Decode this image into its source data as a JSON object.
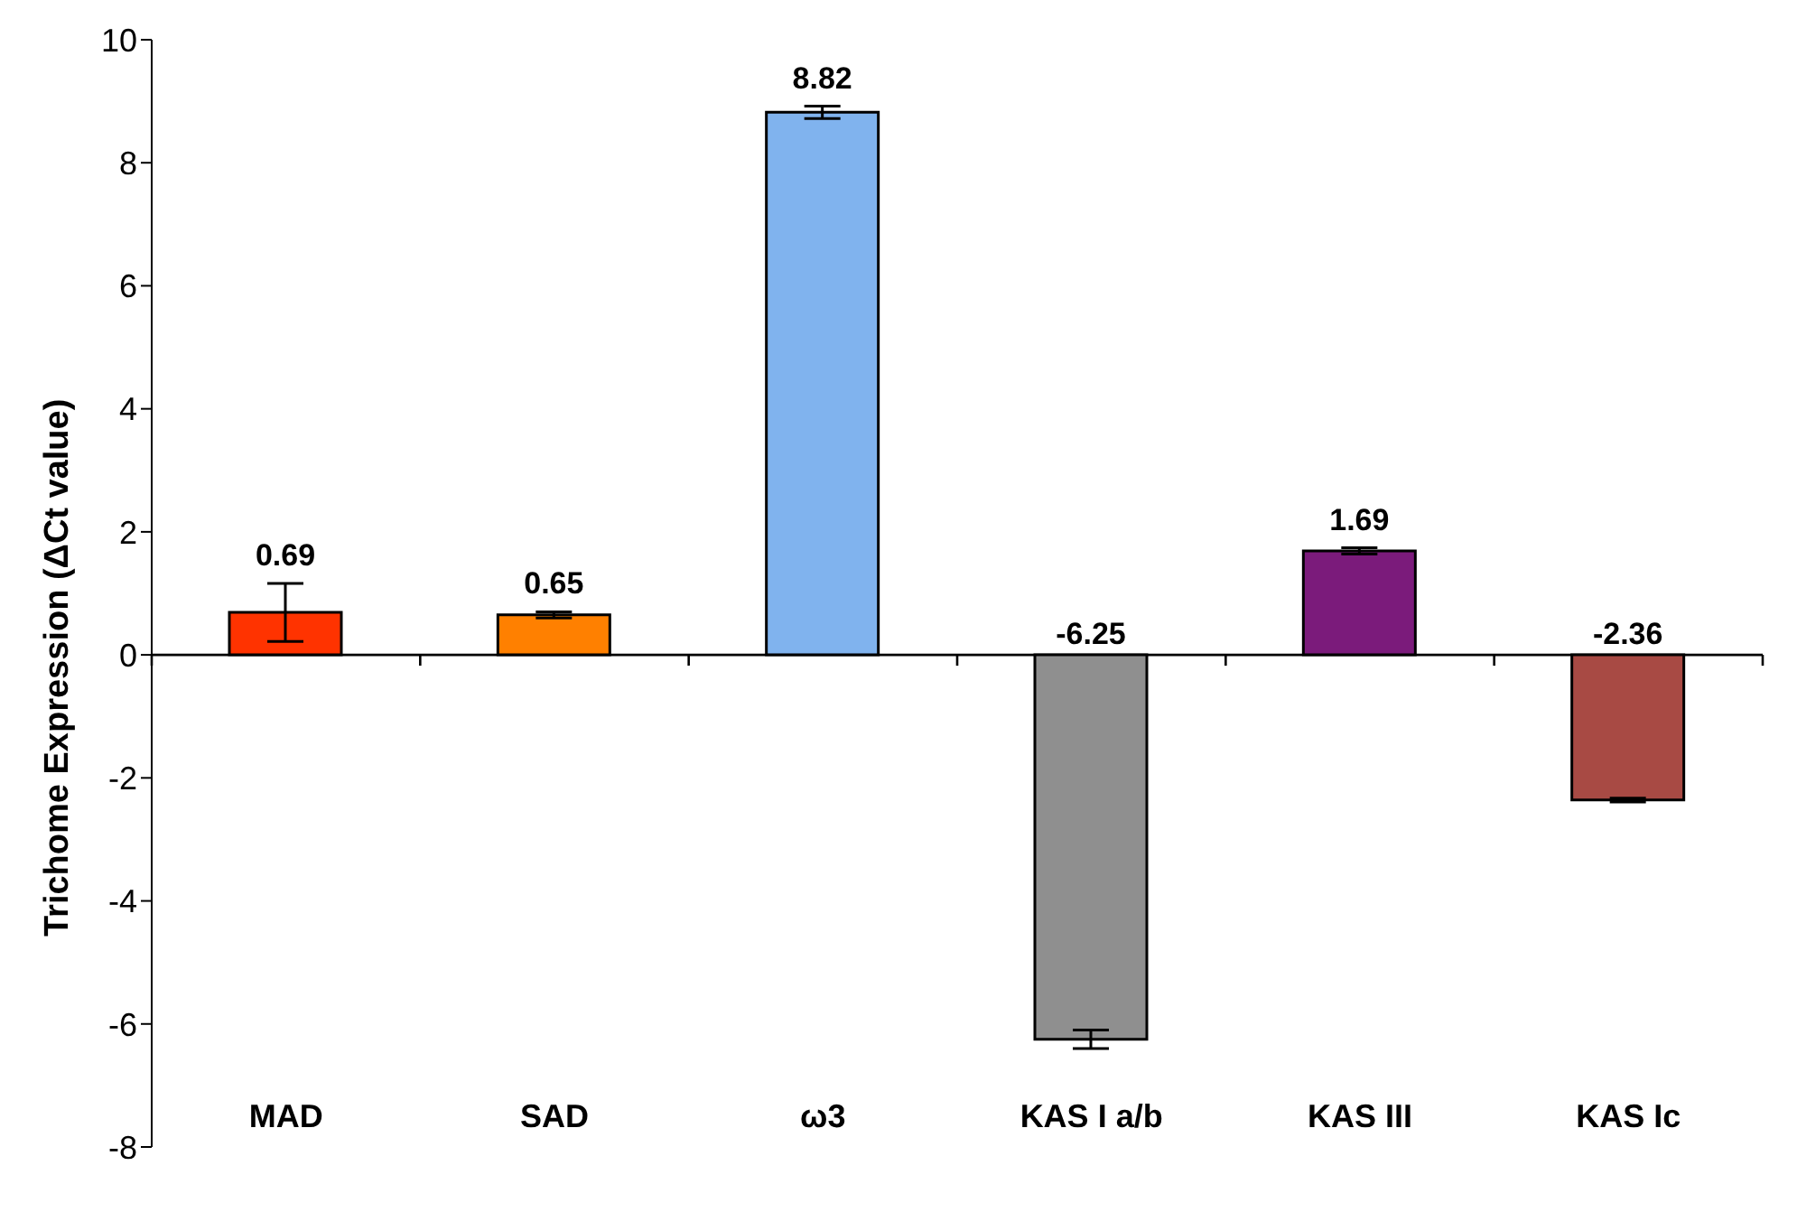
{
  "chart_data": {
    "type": "bar",
    "ylabel": "Trichome Expression (ΔCt value)",
    "categories": [
      "MAD",
      "SAD",
      "ω3",
      "KAS I a/b",
      "KAS III",
      "KAS Ic"
    ],
    "values": [
      0.69,
      0.65,
      8.82,
      -6.25,
      1.69,
      -2.36
    ],
    "errors": [
      0.47,
      0.05,
      0.1,
      0.15,
      0.05,
      0.03
    ],
    "colors": [
      "#ff3300",
      "#ff8000",
      "#80b3ee",
      "#8f8f8f",
      "#7b1b7b",
      "#a84a44"
    ],
    "ylim": [
      -8,
      10
    ],
    "yticks": [
      -8,
      -6,
      -4,
      -2,
      0,
      2,
      4,
      6,
      8,
      10
    ],
    "data_labels": true,
    "legend": false
  }
}
